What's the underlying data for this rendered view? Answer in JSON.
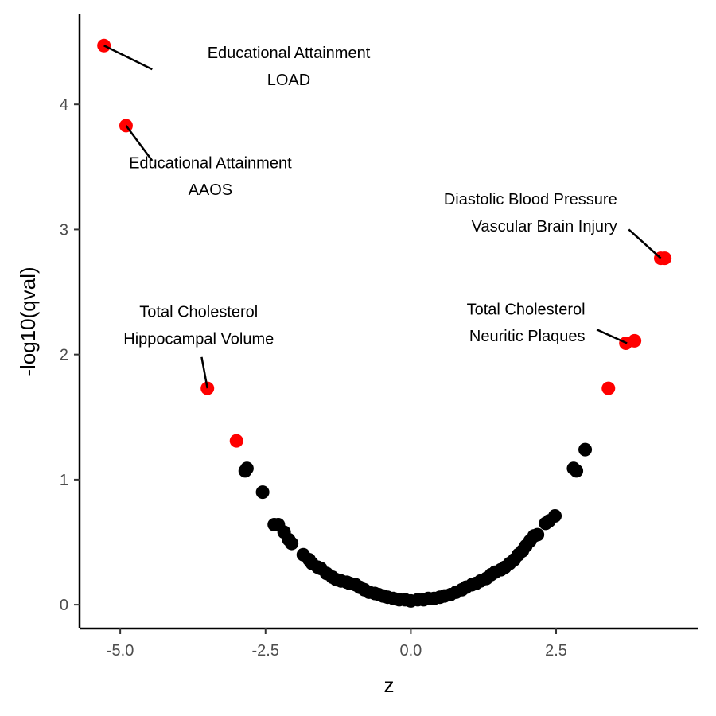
{
  "chart_data": {
    "type": "scatter",
    "title": "",
    "xlabel": "z",
    "ylabel": "-log10(qval)",
    "xlim": [
      -5.7,
      4.95
    ],
    "ylim": [
      -0.19,
      4.72
    ],
    "xticks": [
      -5.0,
      -2.5,
      0.0,
      2.5
    ],
    "xtick_labels": [
      "-5.0",
      "-2.5",
      "0.0",
      "2.5"
    ],
    "yticks": [
      0,
      1,
      2,
      3,
      4
    ],
    "ytick_labels": [
      "0",
      "1",
      "2",
      "3",
      "4"
    ],
    "grid": false,
    "legend": "none",
    "colors": {
      "significant": "#ff0000",
      "nonsignificant": "#000000"
    },
    "series": [
      {
        "group": "significant",
        "points": [
          [
            -5.28,
            4.47
          ],
          [
            -4.9,
            3.83
          ],
          [
            -3.5,
            1.73
          ],
          [
            -3.0,
            1.31
          ],
          [
            3.4,
            1.73
          ],
          [
            3.7,
            2.09
          ],
          [
            3.85,
            2.11
          ],
          [
            4.3,
            2.77
          ],
          [
            4.37,
            2.77
          ]
        ]
      },
      {
        "group": "nonsignificant",
        "points": [
          [
            -2.85,
            1.07
          ],
          [
            -2.82,
            1.09
          ],
          [
            -2.55,
            0.9
          ],
          [
            -2.35,
            0.64
          ],
          [
            -2.28,
            0.64
          ],
          [
            -2.18,
            0.58
          ],
          [
            -2.1,
            0.52
          ],
          [
            -2.05,
            0.49
          ],
          [
            -1.85,
            0.4
          ],
          [
            -1.75,
            0.36
          ],
          [
            -1.7,
            0.33
          ],
          [
            -1.6,
            0.3
          ],
          [
            -1.55,
            0.29
          ],
          [
            -1.45,
            0.25
          ],
          [
            -1.35,
            0.22
          ],
          [
            -1.28,
            0.2
          ],
          [
            -1.2,
            0.19
          ],
          [
            -1.1,
            0.18
          ],
          [
            -1.05,
            0.17
          ],
          [
            -0.95,
            0.16
          ],
          [
            -0.88,
            0.14
          ],
          [
            -0.8,
            0.12
          ],
          [
            -0.72,
            0.1
          ],
          [
            -0.62,
            0.09
          ],
          [
            -0.55,
            0.08
          ],
          [
            -0.48,
            0.07
          ],
          [
            -0.4,
            0.06
          ],
          [
            -0.3,
            0.05
          ],
          [
            -0.2,
            0.04
          ],
          [
            -0.1,
            0.04
          ],
          [
            0.0,
            0.03
          ],
          [
            0.12,
            0.04
          ],
          [
            0.22,
            0.04
          ],
          [
            0.3,
            0.05
          ],
          [
            0.4,
            0.05
          ],
          [
            0.5,
            0.06
          ],
          [
            0.58,
            0.07
          ],
          [
            0.68,
            0.08
          ],
          [
            0.78,
            0.1
          ],
          [
            0.88,
            0.12
          ],
          [
            0.95,
            0.14
          ],
          [
            1.05,
            0.16
          ],
          [
            1.12,
            0.17
          ],
          [
            1.2,
            0.19
          ],
          [
            1.3,
            0.21
          ],
          [
            1.38,
            0.24
          ],
          [
            1.45,
            0.26
          ],
          [
            1.55,
            0.28
          ],
          [
            1.62,
            0.3
          ],
          [
            1.7,
            0.33
          ],
          [
            1.78,
            0.36
          ],
          [
            1.85,
            0.4
          ],
          [
            1.92,
            0.43
          ],
          [
            1.98,
            0.47
          ],
          [
            2.05,
            0.51
          ],
          [
            2.12,
            0.55
          ],
          [
            2.18,
            0.56
          ],
          [
            2.32,
            0.65
          ],
          [
            2.38,
            0.67
          ],
          [
            2.48,
            0.71
          ],
          [
            2.8,
            1.09
          ],
          [
            2.85,
            1.07
          ],
          [
            3.0,
            1.24
          ]
        ]
      }
    ],
    "annotations": [
      {
        "lines": [
          "Educational Attainment",
          "LOAD"
        ],
        "anchor": "middle",
        "label_x": -2.1,
        "label_y": 4.37,
        "line_gap": 0.215,
        "leader_from": [
          -4.45,
          4.28
        ],
        "leader_to": [
          -5.28,
          4.47
        ]
      },
      {
        "lines": [
          "Educational Attainment",
          "AAOS"
        ],
        "anchor": "middle",
        "label_x": -3.45,
        "label_y": 3.49,
        "line_gap": 0.215,
        "leader_from": [
          -4.45,
          3.55
        ],
        "leader_to": [
          -4.9,
          3.83
        ]
      },
      {
        "lines": [
          "Diastolic Blood Pressure",
          "Vascular Brain Injury"
        ],
        "anchor": "end",
        "label_x": 3.55,
        "label_y": 3.2,
        "line_gap": 0.215,
        "leader_from": [
          3.75,
          3.0
        ],
        "leader_to": [
          4.3,
          2.77
        ]
      },
      {
        "lines": [
          "Total Cholesterol",
          "Hippocampal Volume"
        ],
        "anchor": "middle",
        "label_x": -3.65,
        "label_y": 2.3,
        "line_gap": 0.215,
        "leader_from": [
          -3.6,
          1.98
        ],
        "leader_to": [
          -3.5,
          1.73
        ]
      },
      {
        "lines": [
          "Total Cholesterol",
          "Neuritic Plaques"
        ],
        "anchor": "end",
        "label_x": 3.0,
        "label_y": 2.32,
        "line_gap": 0.215,
        "leader_from": [
          3.2,
          2.2
        ],
        "leader_to": [
          3.72,
          2.09
        ]
      }
    ]
  }
}
